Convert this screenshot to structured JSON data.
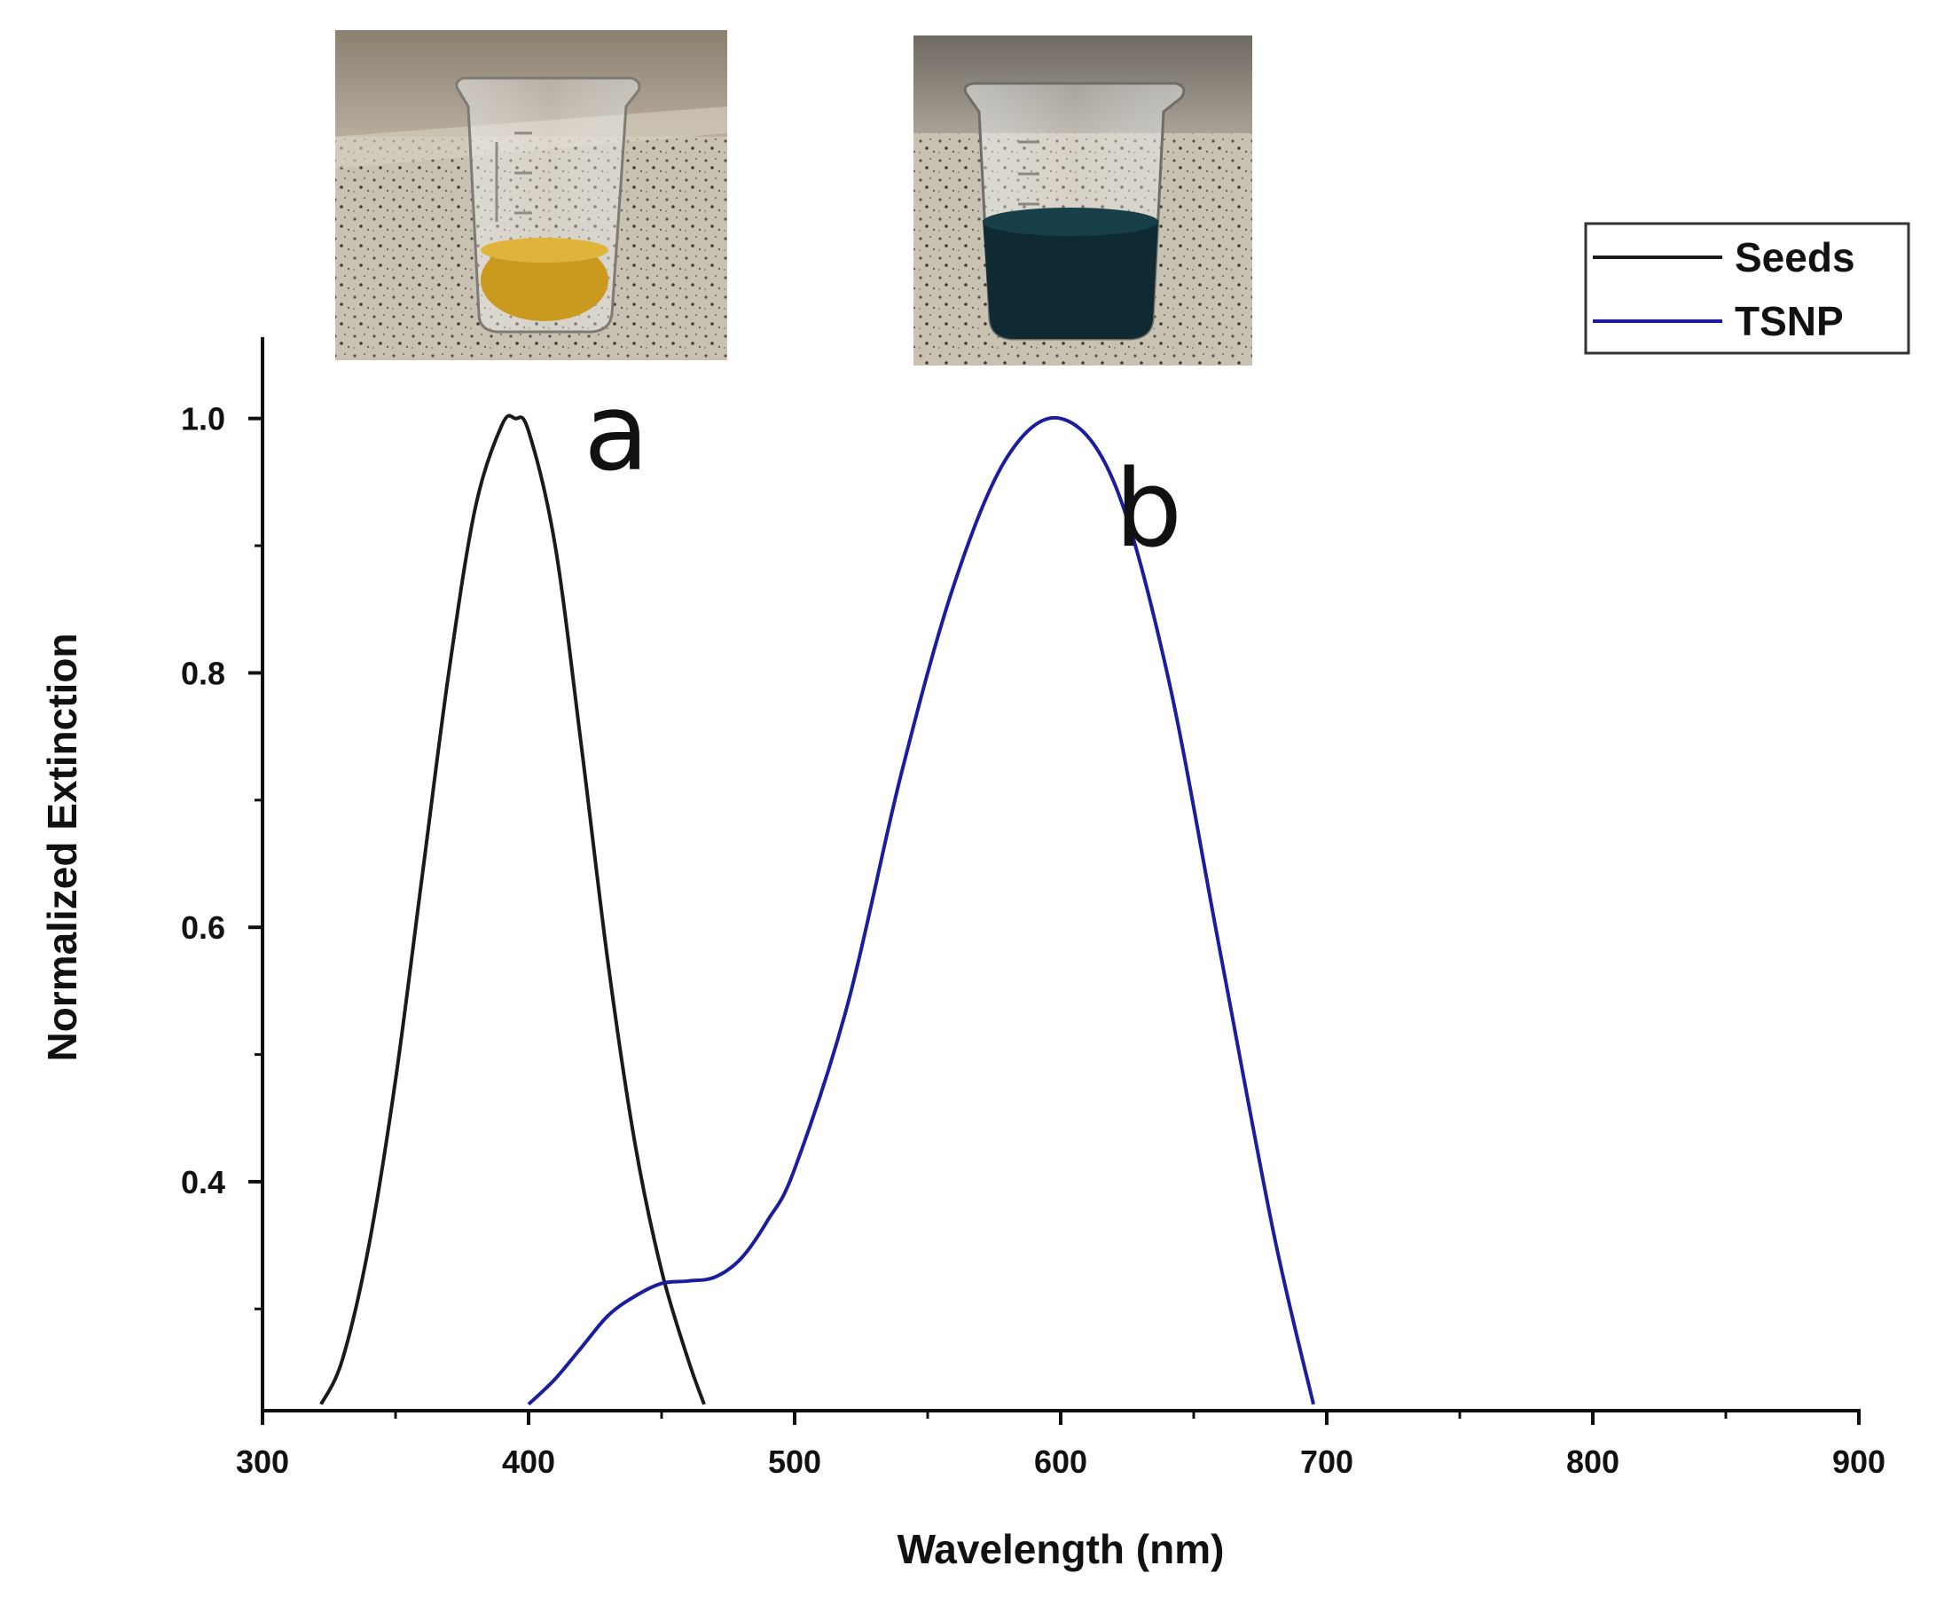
{
  "chart_data": {
    "type": "line",
    "xlabel": "Wavelength (nm)",
    "ylabel": "Normalized Extinction",
    "xlim": [
      300,
      900
    ],
    "ylim": [
      0.22,
      1.05
    ],
    "x_ticks": [
      300,
      400,
      500,
      600,
      700,
      800,
      900
    ],
    "x_tick_labels": [
      "300",
      "400",
      "500",
      "600",
      "700",
      "800",
      "900"
    ],
    "y_ticks": [
      0.4,
      0.6,
      0.8,
      1.0
    ],
    "y_tick_labels": [
      "0.4",
      "0.6",
      "0.8",
      "1.0"
    ],
    "grid": false,
    "legend_position": "top-right",
    "series": [
      {
        "name": "Seeds",
        "color": "#1a1a1a",
        "x": [
          322,
          330,
          340,
          350,
          360,
          370,
          380,
          390,
          395,
          400,
          410,
          420,
          430,
          440,
          450,
          460,
          466
        ],
        "y": [
          0.225,
          0.26,
          0.35,
          0.48,
          0.64,
          0.8,
          0.93,
          0.995,
          1.0,
          0.99,
          0.9,
          0.74,
          0.57,
          0.43,
          0.33,
          0.26,
          0.225
        ]
      },
      {
        "name": "TSNP",
        "color": "#1c1c9e",
        "x": [
          400,
          410,
          420,
          430,
          440,
          450,
          460,
          470,
          480,
          490,
          500,
          520,
          540,
          560,
          580,
          600,
          620,
          640,
          660,
          680,
          695
        ],
        "y": [
          0.225,
          0.245,
          0.27,
          0.295,
          0.31,
          0.32,
          0.322,
          0.325,
          0.34,
          0.37,
          0.41,
          0.54,
          0.72,
          0.87,
          0.97,
          1.0,
          0.95,
          0.8,
          0.58,
          0.36,
          0.225
        ]
      }
    ],
    "annotations": [
      {
        "text": "a",
        "x": 433,
        "y": 0.96
      },
      {
        "text": "b",
        "x": 633,
        "y": 0.9
      }
    ]
  },
  "insets": [
    {
      "name": "seeds-beaker-photo",
      "liquid_color": "#c99a1e"
    },
    {
      "name": "tsnp-beaker-photo",
      "liquid_color": "#0f2a33"
    }
  ]
}
